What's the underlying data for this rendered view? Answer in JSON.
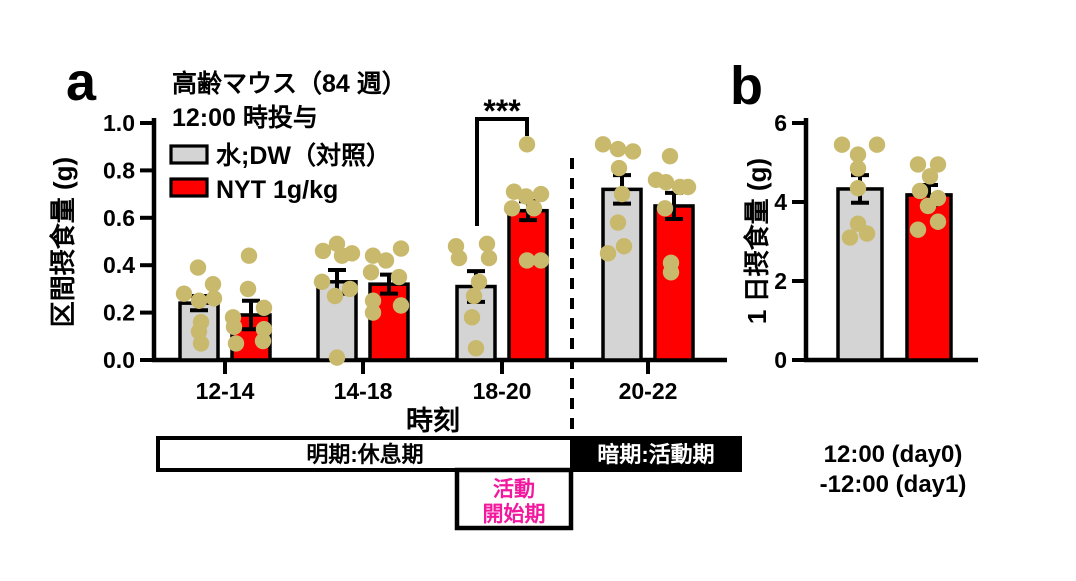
{
  "panels": {
    "a": {
      "letter": "a",
      "title_line1": "高齢マウス（84 週）",
      "title_line2": "12:00 時投与",
      "legend": [
        {
          "label": "水;DW（対照）",
          "color": "#d4d4d4"
        },
        {
          "label": "NYT 1g/kg",
          "color": "#ff0000"
        }
      ],
      "ylabel": "区間摂食量 (g)",
      "xlabel": "時刻",
      "significance_label": "***",
      "boxes": {
        "light": "明期:休息期",
        "dark": "暗期:活動期",
        "activity_line1": "活動",
        "activity_line2": "開始期"
      }
    },
    "b": {
      "letter": "b",
      "ylabel": "1 日摂食量 (g)",
      "xlabel_line1": "12:00 (day0)",
      "xlabel_line2": "-12:00 (day1)"
    }
  },
  "colors": {
    "control_bar": "#d4d4d4",
    "nyt_bar": "#ff0000",
    "dot": "#c9b96d",
    "axis": "#000000",
    "activity_text": "#f2199f",
    "dark_box_bg": "#000000",
    "dark_box_text": "#ffffff"
  },
  "chart_data": [
    {
      "type": "bar",
      "title": "高齢マウス（84 週） 12:00 時投与",
      "categories": [
        "12-14",
        "14-18",
        "18-20",
        "20-22"
      ],
      "xlabel": "時刻",
      "ylabel": "区間摂食量 (g)",
      "ylim": [
        0,
        1.0
      ],
      "yticks": [
        0,
        0.2,
        0.4,
        0.6,
        0.8,
        1.0
      ],
      "ytick_labels": [
        "0.0",
        "0.2",
        "0.4",
        "0.6",
        "0.8",
        "1.0"
      ],
      "grid": false,
      "legend_position": "top-left-inside",
      "series": [
        {
          "name": "水;DW（対照）",
          "color": "#d4d4d4",
          "means": [
            0.24,
            0.33,
            0.31,
            0.72
          ],
          "sem": [
            0.03,
            0.05,
            0.065,
            0.06
          ],
          "points": [
            [
              [
                -15,
                0.28
              ],
              [
                -1,
                0.39
              ],
              [
                14,
                0.32
              ],
              [
                0,
                0.25
              ],
              [
                15,
                0.26
              ],
              [
                2,
                0.16
              ],
              [
                0,
                0.12
              ],
              [
                2,
                0.07
              ]
            ],
            [
              [
                0,
                0.49
              ],
              [
                -14,
                0.46
              ],
              [
                15,
                0.45
              ],
              [
                -15,
                0.33
              ],
              [
                -2,
                0.27
              ],
              [
                13,
                0.3
              ],
              [
                5,
                0.44
              ],
              [
                0,
                0.01
              ]
            ],
            [
              [
                -20,
                0.48
              ],
              [
                11,
                0.49
              ],
              [
                -17,
                0.43
              ],
              [
                13,
                0.43
              ],
              [
                -2,
                0.27
              ],
              [
                -4,
                0.18
              ],
              [
                0,
                0.05
              ],
              [
                3,
                0.33
              ]
            ],
            [
              [
                -19,
                0.91
              ],
              [
                -4,
                0.89
              ],
              [
                11,
                0.88
              ],
              [
                -3,
                0.81
              ],
              [
                -4,
                0.58
              ],
              [
                -14,
                0.45
              ],
              [
                2,
                0.48
              ],
              [
                0,
                0.7
              ]
            ]
          ]
        },
        {
          "name": "NYT 1g/kg",
          "color": "#ff0000",
          "means": [
            0.19,
            0.32,
            0.63,
            0.65
          ],
          "sem": [
            0.06,
            0.04,
            0.04,
            0.055
          ],
          "points": [
            [
              [
                -2,
                0.44
              ],
              [
                -3,
                0.3
              ],
              [
                13,
                0.22
              ],
              [
                -18,
                0.18
              ],
              [
                -17,
                0.14
              ],
              [
                13,
                0.13
              ],
              [
                -15,
                0.07
              ],
              [
                12,
                0.08
              ]
            ],
            [
              [
                -16,
                0.44
              ],
              [
                12,
                0.47
              ],
              [
                -18,
                0.37
              ],
              [
                10,
                0.35
              ],
              [
                -16,
                0.25
              ],
              [
                12,
                0.23
              ],
              [
                -16,
                0.2
              ],
              [
                -3,
                0.42
              ]
            ],
            [
              [
                -1,
                0.91
              ],
              [
                -14,
                0.71
              ],
              [
                -2,
                0.69
              ],
              [
                13,
                0.7
              ],
              [
                -16,
                0.64
              ],
              [
                6,
                0.64
              ],
              [
                -1,
                0.42
              ],
              [
                13,
                0.42
              ]
            ],
            [
              [
                -4,
                0.86
              ],
              [
                -18,
                0.76
              ],
              [
                -8,
                0.75
              ],
              [
                6,
                0.73
              ],
              [
                14,
                0.73
              ],
              [
                -9,
                0.64
              ],
              [
                -3,
                0.41
              ],
              [
                -3,
                0.37
              ]
            ]
          ]
        }
      ],
      "significance": {
        "label": "***",
        "category": "18-20",
        "between": [
          "水;DW（対照）",
          "NYT 1g/kg"
        ]
      },
      "annotations": {
        "light_phase": {
          "label": "明期:休息期",
          "covers": [
            "12-14",
            "14-18",
            "18-20"
          ]
        },
        "dark_phase": {
          "label": "暗期:活動期",
          "covers": [
            "20-22"
          ]
        },
        "activity_onset": {
          "label": "活動開始期",
          "covers": [
            "18-20"
          ]
        }
      }
    },
    {
      "type": "bar",
      "categories": [
        "12:00 (day0)-12:00 (day1)"
      ],
      "ylabel": "1 日摂食量 (g)",
      "ylim": [
        0,
        6
      ],
      "yticks": [
        0,
        2,
        4,
        6
      ],
      "ytick_labels": [
        "0",
        "2",
        "4",
        "6"
      ],
      "grid": false,
      "series": [
        {
          "name": "水;DW（対照）",
          "color": "#d4d4d4",
          "means": [
            4.33
          ],
          "sem": [
            0.35
          ],
          "points": [
            [
              [
                -18,
                5.45
              ],
              [
                17,
                5.45
              ],
              [
                -2,
                5.2
              ],
              [
                -2,
                4.85
              ],
              [
                -2,
                4.35
              ],
              [
                -2,
                3.45
              ],
              [
                -10,
                3.1
              ],
              [
                7,
                3.2
              ]
            ]
          ]
        },
        {
          "name": "NYT 1g/kg",
          "color": "#ff0000",
          "means": [
            4.18
          ],
          "sem": [
            0.25
          ],
          "points": [
            [
              [
                -11,
                4.95
              ],
              [
                9,
                4.95
              ],
              [
                1,
                4.65
              ],
              [
                -9,
                4.28
              ],
              [
                9,
                4.1
              ],
              [
                -1,
                3.9
              ],
              [
                -11,
                3.3
              ],
              [
                9,
                3.5
              ]
            ]
          ]
        }
      ]
    }
  ]
}
